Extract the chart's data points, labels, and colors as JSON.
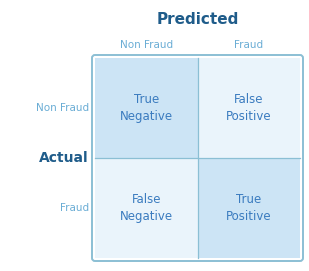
{
  "title": "Predicted",
  "ylabel": "Actual",
  "col_labels": [
    "Non Fraud",
    "Fraud"
  ],
  "row_labels": [
    "Non Fraud",
    "Fraud"
  ],
  "cells": [
    [
      "True\nNegative",
      "False\nPositive"
    ],
    [
      "False\nNegative",
      "True\nPositive"
    ]
  ],
  "cell_colors": [
    [
      "#cce4f5",
      "#eaf4fb"
    ],
    [
      "#eaf4fb",
      "#cce4f5"
    ]
  ],
  "border_color": "#8bbfd4",
  "text_color": "#3a7bbf",
  "title_color": "#1f5c8a",
  "label_color": "#6aadd5",
  "actual_bold_color": "#1f5c8a",
  "bg_color": "#ffffff",
  "cell_text_fontsize": 8.5,
  "title_fontsize": 11,
  "col_label_fontsize": 7.5,
  "row_label_fontsize": 7.5,
  "actual_label_fontsize": 10
}
